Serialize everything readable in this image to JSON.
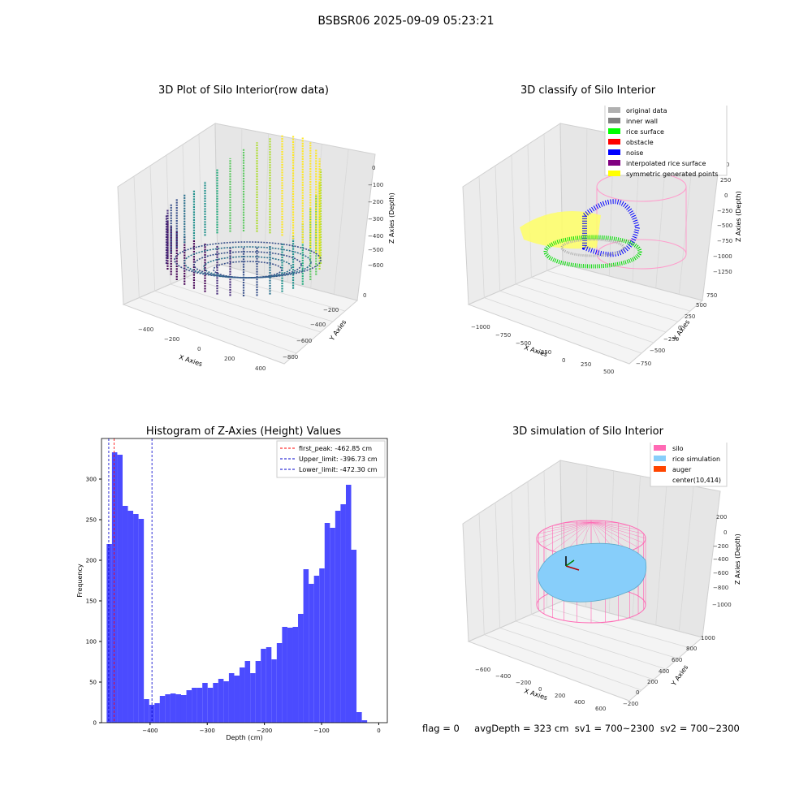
{
  "figure_title": "BSBSR06 2025-09-09 05:23:21",
  "footer": {
    "flag": "flag = 0",
    "avg_depth": "avgDepth = 323 cm",
    "sv1": "sv1 = 700~2300",
    "sv2": "sv2 = 700~2300"
  },
  "colors": {
    "histogram_bar": "#4b4bff",
    "first_peak_line": "#ff0000",
    "limit_lines": "#0000cc",
    "silo": "#ff69b4",
    "rice_simulation": "#87cefa",
    "auger": "#ff4500"
  },
  "chart_data": [
    {
      "type": "scatter",
      "projection": "3d",
      "title": "3D Plot of Silo Interior(row data)",
      "xlabel": "X Axies",
      "ylabel": "Y Axies",
      "zlabel": "Z Axies (Depth)",
      "x_ticks": [
        "−400",
        "−200",
        "0",
        "200",
        "400"
      ],
      "y_ticks": [
        "0",
        "−200",
        "−400",
        "−600",
        "−800"
      ],
      "z_ticks": [
        "0",
        "−100",
        "−200",
        "−300",
        "−400",
        "−500",
        "−600"
      ],
      "colormap": "viridis",
      "grid": true
    },
    {
      "type": "scatter",
      "projection": "3d",
      "title": "3D classify of Silo Interior",
      "xlabel": "X Axies",
      "ylabel": "Y Axies",
      "zlabel": "Z Axies (Depth)",
      "x_ticks": [
        "−1000",
        "−750",
        "−500",
        "−250",
        "0",
        "250",
        "500"
      ],
      "y_ticks": [
        "750",
        "500",
        "250",
        "0",
        "−250",
        "−500",
        "−750"
      ],
      "z_ticks": [
        "500",
        "250",
        "0",
        "−250",
        "−500",
        "−750",
        "−1000",
        "−1250"
      ],
      "legend_position": "top-right",
      "legend": [
        {
          "label": "original data",
          "color": "#b0b0b0"
        },
        {
          "label": "inner wall",
          "color": "#808080"
        },
        {
          "label": "rice surface",
          "color": "#00ff00"
        },
        {
          "label": "obstacle",
          "color": "#ff0000"
        },
        {
          "label": "noise",
          "color": "#0000ff"
        },
        {
          "label": "interpolated rice surface",
          "color": "#800080"
        },
        {
          "label": "symmetric generated points",
          "color": "#ffff00"
        }
      ],
      "grid": true
    },
    {
      "type": "bar",
      "title": "Histogram of Z-Axies (Height) Values",
      "xlabel": "Depth (cm)",
      "ylabel": "Frequency",
      "xlim": [
        -485,
        15
      ],
      "ylim": [
        0,
        350
      ],
      "x_ticks": [
        -400,
        -300,
        -200,
        -100,
        0
      ],
      "x_tick_labels": [
        "−400",
        "−300",
        "−200",
        "−100",
        "0"
      ],
      "y_ticks": [
        0,
        50,
        100,
        150,
        200,
        250,
        300
      ],
      "bin_start": -476,
      "bin_width": 9.3,
      "values": [
        220,
        333,
        330,
        267,
        261,
        257,
        251,
        29,
        22,
        24,
        33,
        35,
        36,
        35,
        34,
        40,
        43,
        43,
        49,
        43,
        49,
        54,
        51,
        61,
        58,
        68,
        76,
        61,
        76,
        91,
        93,
        78,
        98,
        118,
        117,
        118,
        134,
        189,
        171,
        181,
        190,
        246,
        240,
        261,
        269,
        293,
        213,
        13,
        3
      ],
      "lines": [
        {
          "label": "first_peak: -462.85 cm",
          "value": -462.85,
          "color": "#ff0000"
        },
        {
          "label": "Upper_limit: -396.73 cm",
          "value": -396.73,
          "color": "#0000cc"
        },
        {
          "label": "Lower_limit: -472.30 cm",
          "value": -472.3,
          "color": "#0000cc"
        }
      ],
      "legend_position": "top-right",
      "grid": false
    },
    {
      "type": "scatter",
      "projection": "3d",
      "title": "3D simulation of Silo Interior",
      "xlabel": "X Axies",
      "ylabel": "Y Axies",
      "zlabel": "Z Axies (Depth)",
      "x_ticks": [
        "−600",
        "−400",
        "−200",
        "0",
        "200",
        "400",
        "600"
      ],
      "y_ticks": [
        "1000",
        "800",
        "600",
        "400",
        "200",
        "0",
        "−200"
      ],
      "z_ticks": [
        "200",
        "0",
        "−200",
        "−400",
        "−600",
        "−800",
        "−1000"
      ],
      "legend_position": "top-right",
      "legend": [
        {
          "label": "silo",
          "color": "#ff69b4"
        },
        {
          "label": "rice simulation",
          "color": "#87cefa"
        },
        {
          "label": "auger",
          "color": "#ff4500"
        },
        {
          "label": "center(10,414)",
          "color": "none"
        }
      ],
      "grid": true
    }
  ]
}
